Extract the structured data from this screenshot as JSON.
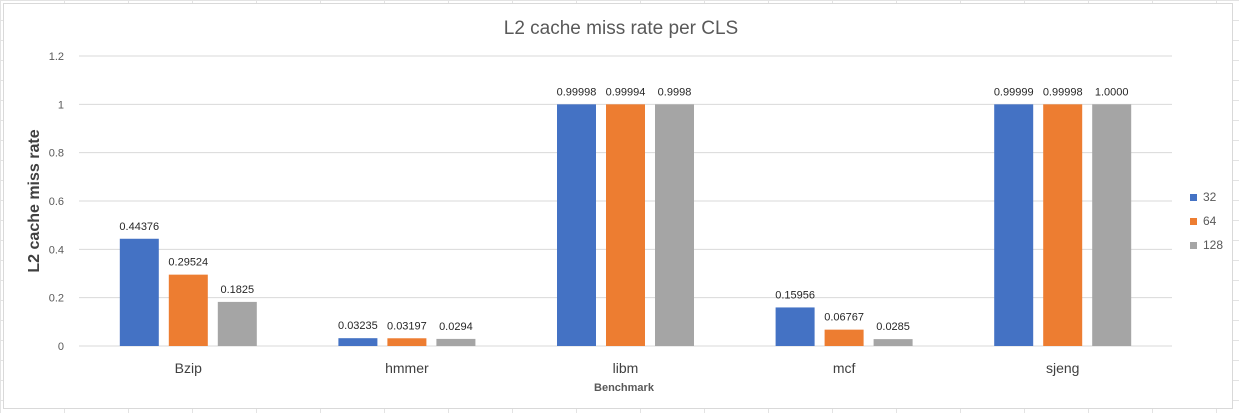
{
  "chart_data": {
    "type": "bar",
    "title": "L2 cache miss rate per CLS",
    "xlabel": "Benchmark",
    "ylabel": "L2 cache miss rate",
    "categories": [
      "Bzip",
      "hmmer",
      "libm",
      "mcf",
      "sjeng"
    ],
    "series": [
      {
        "name": "32",
        "color": "#4472C4",
        "values": [
          0.44376,
          0.03235,
          0.99998,
          0.15956,
          0.99999
        ],
        "labels": [
          "0.44376",
          "0.03235",
          "0.99998",
          "0.15956",
          "0.99999"
        ]
      },
      {
        "name": "64",
        "color": "#ED7D31",
        "values": [
          0.29524,
          0.03197,
          0.99994,
          0.06767,
          0.99998
        ],
        "labels": [
          "0.29524",
          "0.03197",
          "0.99994",
          "0.06767",
          "0.99998"
        ]
      },
      {
        "name": "128",
        "color": "#A5A5A5",
        "values": [
          0.1825,
          0.0294,
          0.9998,
          0.0285,
          1.0
        ],
        "labels": [
          "0.1825",
          "0.0294",
          "0.9998",
          "0.0285",
          "1.0000"
        ]
      }
    ],
    "ylim": [
      0,
      1.2
    ],
    "yticks": [
      "0",
      "0.2",
      "0.4",
      "0.6",
      "0.8",
      "1",
      "1.2"
    ],
    "ytick_values": [
      0,
      0.2,
      0.4,
      0.6,
      0.8,
      1,
      1.2
    ],
    "grid": true,
    "legend": "right"
  }
}
